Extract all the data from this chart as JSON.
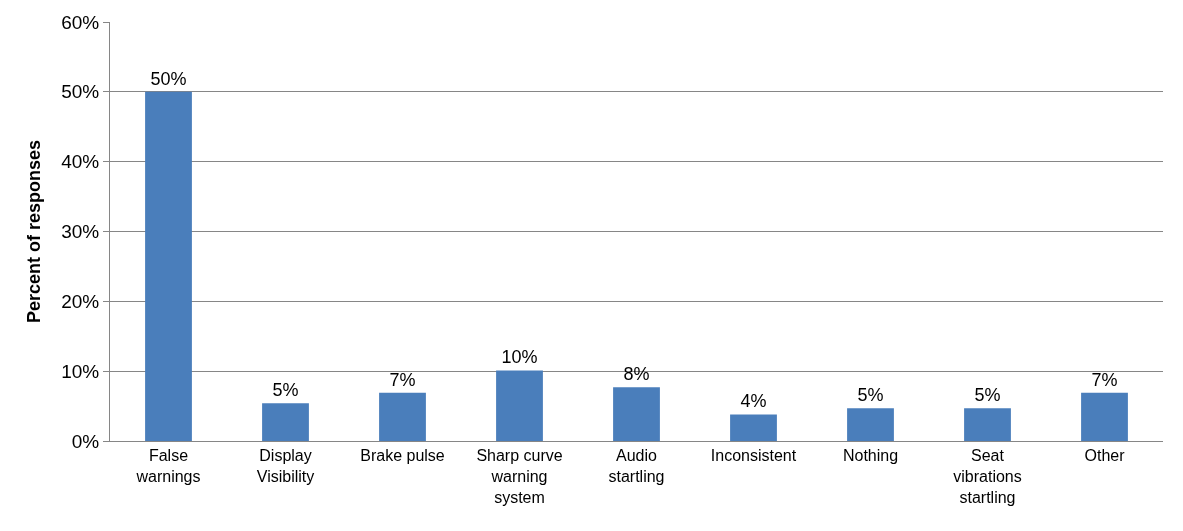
{
  "chart_data": {
    "type": "bar",
    "ylabel": "Percent of responses",
    "categories": [
      "False warnings",
      "Display Visibility",
      "Brake pulse",
      "Sharp curve warning system",
      "Audio startling",
      "Inconsistent",
      "Nothing",
      "Seat vibrations startling",
      "Other"
    ],
    "values": [
      50,
      5.4,
      6.9,
      10.1,
      7.7,
      3.8,
      4.7,
      4.7,
      6.9
    ],
    "value_labels": [
      "50%",
      "5%",
      "7%",
      "10%",
      "8%",
      "4%",
      "5%",
      "5%",
      "7%"
    ],
    "color": "#4a7ebb",
    "ylim": [
      0,
      60
    ],
    "yticks": [
      {
        "value": 0,
        "label": "0%"
      },
      {
        "value": 10,
        "label": "10%"
      },
      {
        "value": 20,
        "label": "20%"
      },
      {
        "value": 30,
        "label": "30%"
      },
      {
        "value": 40,
        "label": "40%"
      },
      {
        "value": 50,
        "label": "50%"
      },
      {
        "value": 60,
        "label": "60%"
      }
    ],
    "grid": "y",
    "legend": false
  }
}
